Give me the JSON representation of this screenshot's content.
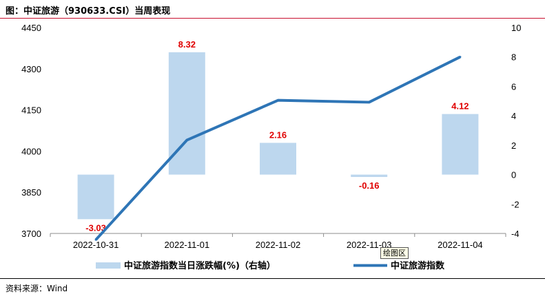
{
  "header": {
    "title": "图：中证旅游（930633.CSI）当周表现"
  },
  "footer": {
    "source": "资料来源：Wind"
  },
  "tooltip": {
    "text": "绘图区"
  },
  "chart_data": {
    "type": "bar+line",
    "categories": [
      "2022-10-31",
      "2022-11-01",
      "2022-11-02",
      "2022-11-03",
      "2022-11-04"
    ],
    "series": [
      {
        "name": "中证旅游指数当日涨跌幅(%)（右轴）",
        "type": "bar",
        "axis": "right",
        "values": [
          -3.03,
          8.32,
          2.16,
          -0.16,
          4.12
        ],
        "color": "#bdd7ee"
      },
      {
        "name": "中证旅游指数",
        "type": "line",
        "axis": "left",
        "values": [
          3677,
          4040,
          4185,
          4178,
          4343
        ],
        "color": "#2e75b6"
      }
    ],
    "data_labels": [
      "-3.03",
      "8.32",
      "2.16",
      "-0.16",
      "4.12"
    ],
    "left_axis": {
      "ylim": [
        3700,
        4450
      ],
      "ticks": [
        "4450",
        "4300",
        "4150",
        "4000",
        "3850",
        "3700"
      ]
    },
    "right_axis": {
      "ylim": [
        -4,
        10
      ],
      "ticks": [
        "10",
        "8",
        "6",
        "4",
        "2",
        "0",
        "-2",
        "-4"
      ]
    },
    "grid": false,
    "legend_position": "bottom",
    "label_color": "#e00000"
  }
}
